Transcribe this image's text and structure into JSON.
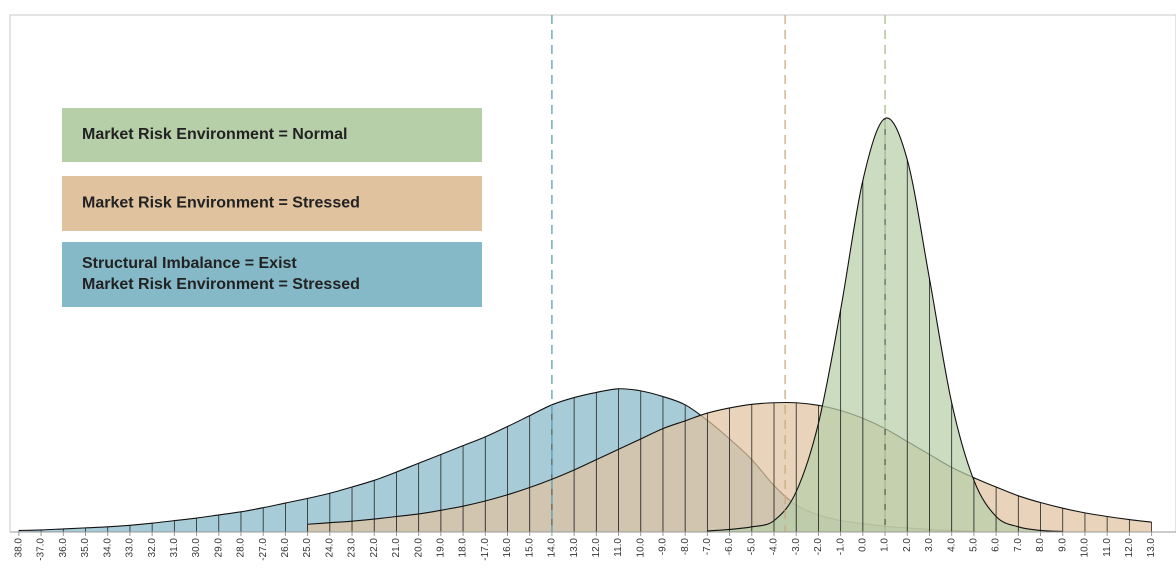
{
  "chart_data": {
    "type": "area",
    "x": [
      -38,
      -37,
      -36,
      -35,
      -34,
      -33,
      -32,
      -31,
      -30,
      -29,
      -28,
      -27,
      -26,
      -25,
      -24,
      -23,
      -22,
      -21,
      -20,
      -19,
      -18,
      -17,
      -16,
      -15,
      -14,
      -13,
      -12,
      -11,
      -10,
      -9,
      -8,
      -7,
      -6,
      -5,
      -4,
      -3,
      -2,
      -1,
      0,
      1,
      2,
      3,
      4,
      5,
      6,
      7,
      8,
      9,
      10,
      11,
      12,
      13
    ],
    "xlim": [
      -38.4,
      14.1
    ],
    "ylim": [
      0,
      100
    ],
    "xticks": [
      {
        "value": -38,
        "label": "38.0"
      },
      {
        "value": -37,
        "label": "-37.0"
      },
      {
        "value": -36,
        "label": "36.0"
      },
      {
        "value": -35,
        "label": "35.0"
      },
      {
        "value": -34,
        "label": "34.0"
      },
      {
        "value": -33,
        "label": "33.0"
      },
      {
        "value": -32,
        "label": "32.0"
      },
      {
        "value": -31,
        "label": "31.0"
      },
      {
        "value": -30,
        "label": "30.0"
      },
      {
        "value": -29,
        "label": "29.0"
      },
      {
        "value": -28,
        "label": "28.0"
      },
      {
        "value": -27,
        "label": "-27.0"
      },
      {
        "value": -26,
        "label": "26.0"
      },
      {
        "value": -25,
        "label": "25.0"
      },
      {
        "value": -24,
        "label": "24.0"
      },
      {
        "value": -23,
        "label": "23.0"
      },
      {
        "value": -22,
        "label": "22.0"
      },
      {
        "value": -21,
        "label": "21.0"
      },
      {
        "value": -20,
        "label": "20.0"
      },
      {
        "value": -19,
        "label": "19.0"
      },
      {
        "value": -18,
        "label": "18.0"
      },
      {
        "value": -17,
        "label": "-17.0"
      },
      {
        "value": -16,
        "label": "16.0"
      },
      {
        "value": -15,
        "label": "15.0"
      },
      {
        "value": -14,
        "label": "14.0"
      },
      {
        "value": -13,
        "label": "13.0"
      },
      {
        "value": -12,
        "label": "12.0"
      },
      {
        "value": -11,
        "label": "11.0"
      },
      {
        "value": -10,
        "label": "10.0"
      },
      {
        "value": -9,
        "label": "-9.0"
      },
      {
        "value": -8,
        "label": "-8.0"
      },
      {
        "value": -7,
        "label": "-7.0"
      },
      {
        "value": -6,
        "label": "-6.0"
      },
      {
        "value": -5,
        "label": "-5.0"
      },
      {
        "value": -4,
        "label": "-4.0"
      },
      {
        "value": -3,
        "label": "-3.0"
      },
      {
        "value": -2,
        "label": "-2.0"
      },
      {
        "value": -1,
        "label": "-1.0"
      },
      {
        "value": 0,
        "label": "0.0"
      },
      {
        "value": 1,
        "label": "1.0"
      },
      {
        "value": 2,
        "label": "2.0"
      },
      {
        "value": 3,
        "label": "3.0"
      },
      {
        "value": 4,
        "label": "4.0"
      },
      {
        "value": 5,
        "label": "5.0"
      },
      {
        "value": 6,
        "label": "6.0"
      },
      {
        "value": 7,
        "label": "7.0"
      },
      {
        "value": 8,
        "label": "8.0"
      },
      {
        "value": 9,
        "label": "9.0"
      },
      {
        "value": 10,
        "label": "10.0"
      },
      {
        "value": 11,
        "label": "11.0"
      },
      {
        "value": 12,
        "label": "12.0"
      },
      {
        "value": 13,
        "label": "13.0"
      }
    ],
    "series": [
      {
        "name": [
          "Market Risk Environment = Normal"
        ],
        "color": "#b7cfa9",
        "line_color": "#a9b98f",
        "marker": 1,
        "values": [
          null,
          null,
          null,
          null,
          null,
          null,
          null,
          null,
          null,
          null,
          null,
          null,
          null,
          null,
          null,
          null,
          null,
          null,
          null,
          null,
          null,
          null,
          null,
          null,
          null,
          null,
          null,
          null,
          null,
          null,
          null,
          0.2,
          0.5,
          1,
          2.2,
          7.8,
          21,
          43,
          68,
          80,
          72,
          49,
          25,
          10,
          3,
          1,
          0.3,
          0.1,
          null,
          null,
          null,
          null
        ]
      },
      {
        "name": [
          "Market Risk Environment = Stressed"
        ],
        "color": "#e0c29f",
        "line_color": "#c9ab80",
        "marker": -3.5,
        "values": [
          null,
          null,
          null,
          null,
          null,
          null,
          null,
          null,
          null,
          null,
          null,
          null,
          null,
          1.5,
          1.8,
          2.1,
          2.5,
          3.0,
          3.5,
          4.2,
          5.0,
          6.0,
          7.2,
          8.6,
          10.2,
          12,
          14,
          16,
          18,
          20,
          21.5,
          23,
          24,
          24.7,
          25,
          25,
          24.5,
          23.5,
          22,
          20,
          17.5,
          15,
          12.5,
          10.5,
          8.7,
          7,
          5.7,
          4.6,
          3.7,
          3,
          2.4,
          1.9
        ]
      },
      {
        "name": [
          "Structural Imbalance = Exist",
          "Market Risk Environment = Stressed"
        ],
        "color": "#86b9c8",
        "line_color": "#5b9db6",
        "marker": -14,
        "values": [
          0.3,
          0.4,
          0.6,
          0.8,
          1.0,
          1.3,
          1.7,
          2.2,
          2.7,
          3.3,
          3.9,
          4.7,
          5.6,
          6.5,
          7.5,
          8.7,
          10.0,
          11.6,
          13.3,
          15.0,
          16.7,
          18.4,
          20.4,
          22.5,
          24.6,
          26,
          27,
          27.7,
          27.3,
          26.2,
          24.6,
          21.6,
          18,
          14,
          9,
          5.2,
          3.3,
          2.2,
          1.6,
          1.1,
          0.8,
          0.5,
          0.3,
          0.1,
          null,
          null,
          null,
          null,
          null,
          null,
          null,
          null
        ]
      }
    ]
  }
}
